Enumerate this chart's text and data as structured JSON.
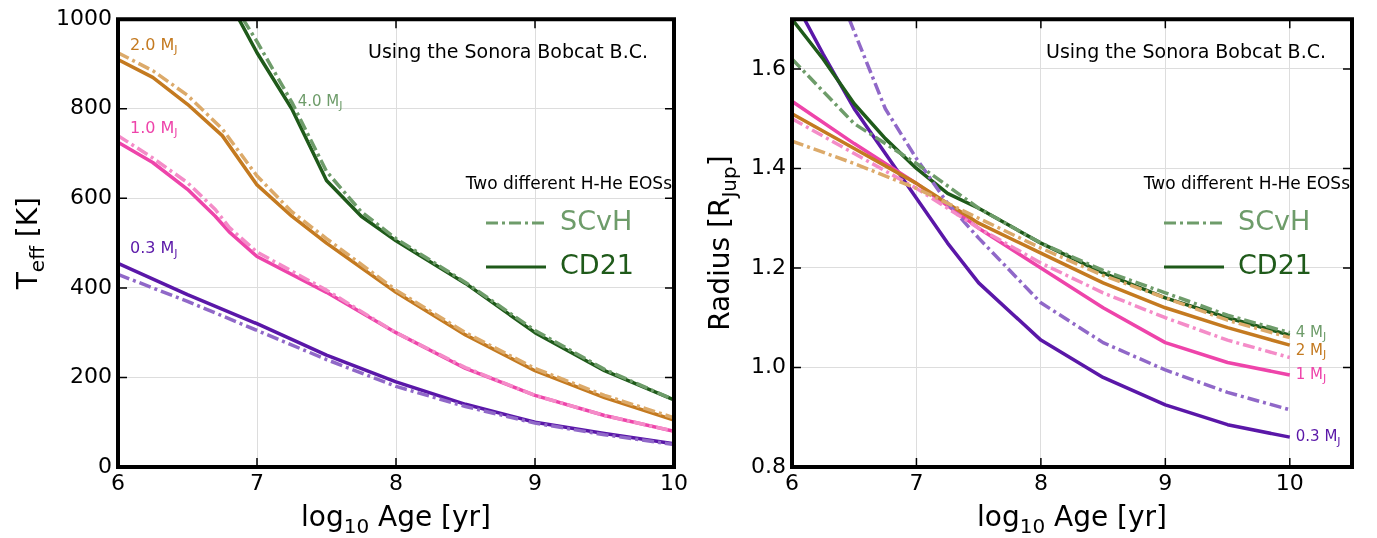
{
  "chart_data": [
    {
      "type": "line",
      "xlabel": "log$_{10}$ Age [yr]",
      "ylabel": "T$_{eff}$ [K]",
      "legend_title": "Two different H-He EOSs",
      "legend": "right",
      "grid": true,
      "xlim": [
        6,
        10
      ],
      "xticks": [
        6,
        7,
        8,
        9,
        10
      ],
      "ylim": [
        0,
        1000
      ],
      "yticks": [
        0,
        200,
        400,
        600,
        800,
        1000
      ],
      "annotations": [
        "Using the Sonora Bobcat B.C.",
        {
          "text": "2.0 M$_{J}$",
          "x": 6,
          "y": 910
        },
        {
          "text": "4.0 M$_{J}$",
          "x": 7.25,
          "y": 815
        },
        {
          "text": "1.0 M$_{J}$",
          "x": 6,
          "y": 725
        },
        {
          "text": "0.3 M$_{J}$",
          "x": 6,
          "y": 455
        }
      ],
      "series": [
        {
          "name": "SCvH",
          "color": "#6e9c6a",
          "line_style": "dashed",
          "x": [
            6.9,
            7,
            7.25,
            7.5,
            7.75,
            8,
            8.5,
            9,
            9.5,
            10
          ],
          "values": [
            1000,
            950,
            815,
            660,
            570,
            510,
            412,
            305,
            218,
            150
          ]
        },
        {
          "color": "#dcaa6a",
          "line_style": "dashed",
          "x": [
            6,
            6.25,
            6.5,
            6.75,
            7,
            7.25,
            7.5,
            8,
            8.5,
            9,
            9.5,
            10
          ],
          "values": [
            925,
            885,
            830,
            755,
            650,
            570,
            510,
            395,
            300,
            220,
            160,
            110
          ]
        },
        {
          "color": "#f48cc8",
          "line_style": "dashed",
          "x": [
            6,
            6.25,
            6.5,
            6.7,
            6.8,
            7,
            7.5,
            8,
            8.5,
            9,
            9.5,
            10
          ],
          "values": [
            740,
            690,
            635,
            575,
            535,
            480,
            395,
            300,
            222,
            160,
            115,
            80
          ]
        },
        {
          "color": "#9068c8",
          "line_style": "dashed",
          "x": [
            6,
            6.5,
            7,
            7.5,
            8,
            8.5,
            9,
            9.5,
            10
          ],
          "values": [
            430,
            370,
            305,
            240,
            180,
            135,
            98,
            72,
            50
          ]
        },
        {
          "name": "CD21",
          "color": "#1f5a1a",
          "line_style": "solid",
          "x": [
            6.87,
            7,
            7.25,
            7.5,
            7.75,
            8,
            8.5,
            9,
            9.5,
            10
          ],
          "values": [
            1000,
            925,
            800,
            640,
            560,
            505,
            410,
            300,
            215,
            150
          ]
        },
        {
          "color": "#c47a20",
          "line_style": "solid",
          "x": [
            6,
            6.25,
            6.5,
            6.75,
            7,
            7.25,
            7.5,
            8,
            8.5,
            9,
            9.5,
            10
          ],
          "values": [
            910,
            870,
            810,
            740,
            630,
            560,
            500,
            390,
            295,
            215,
            155,
            105
          ]
        },
        {
          "color": "#ee44aa",
          "line_style": "solid",
          "x": [
            6,
            6.25,
            6.5,
            6.7,
            6.8,
            7,
            7.5,
            8,
            8.5,
            9,
            9.5,
            10
          ],
          "values": [
            725,
            680,
            620,
            560,
            525,
            470,
            390,
            300,
            220,
            160,
            115,
            80
          ]
        },
        {
          "color": "#5a17a8",
          "line_style": "solid",
          "x": [
            6,
            6.5,
            7,
            7.5,
            8,
            8.5,
            9,
            9.5,
            10
          ],
          "values": [
            455,
            385,
            320,
            250,
            190,
            140,
            100,
            75,
            52
          ]
        }
      ]
    },
    {
      "type": "line",
      "xlabel": "log$_{10}$ Age [yr]",
      "ylabel": "Radius [R$_{Jup}$]",
      "legend_title": "Two different H-He EOSs",
      "legend": "right",
      "grid": true,
      "xlim": [
        6,
        10.5
      ],
      "xticks": [
        6,
        7,
        8,
        9,
        10
      ],
      "ylim": [
        0.8,
        1.7
      ],
      "yticks": [
        0.8,
        {
          "value": 1,
          "label": "1.0"
        },
        1.2,
        1.4,
        1.6
      ],
      "annotations": [
        "Using the Sonora Bobcat B.C.",
        {
          "text": "4 M$_{J}$",
          "x": 10,
          "y": 1.07
        },
        {
          "text": "2 M$_{J}$",
          "x": 10,
          "y": 1.045
        },
        {
          "text": "1 M$_{J}$",
          "x": 10,
          "y": 0.985
        },
        {
          "text": "0.3 M$_{J}$",
          "x": 10,
          "y": 0.86
        }
      ],
      "series": [
        {
          "name": "SCvH",
          "color": "#6e9c6a",
          "line_style": "dashed",
          "x": [
            6,
            6.5,
            7,
            7.5,
            8,
            8.5,
            9,
            9.5,
            10
          ],
          "values": [
            1.62,
            1.49,
            1.41,
            1.32,
            1.25,
            1.195,
            1.15,
            1.105,
            1.07
          ]
        },
        {
          "color": "#dcaa6a",
          "line_style": "dashed",
          "x": [
            6,
            6.5,
            7,
            7.5,
            8,
            8.5,
            9,
            9.5,
            10
          ],
          "values": [
            1.455,
            1.41,
            1.36,
            1.3,
            1.24,
            1.185,
            1.14,
            1.095,
            1.06
          ]
        },
        {
          "color": "#f48cc8",
          "line_style": "dashed",
          "x": [
            6,
            6.5,
            7,
            7.5,
            8,
            8.5,
            9,
            9.5,
            10
          ],
          "values": [
            1.5,
            1.43,
            1.36,
            1.28,
            1.21,
            1.15,
            1.1,
            1.055,
            1.02
          ]
        },
        {
          "color": "#9068c8",
          "line_style": "dashed",
          "x": [
            6.46,
            6.75,
            7,
            7.25,
            7.5,
            8,
            8.5,
            9,
            9.5,
            10
          ],
          "values": [
            1.7,
            1.52,
            1.42,
            1.33,
            1.26,
            1.13,
            1.05,
            0.995,
            0.95,
            0.915
          ]
        },
        {
          "name": "CD21",
          "color": "#1f5a1a",
          "line_style": "solid",
          "x": [
            6,
            6.25,
            6.5,
            6.75,
            7,
            7.25,
            7.5,
            8,
            8.5,
            9,
            9.5,
            10
          ],
          "values": [
            1.7,
            1.62,
            1.53,
            1.46,
            1.4,
            1.35,
            1.32,
            1.25,
            1.19,
            1.14,
            1.1,
            1.065
          ]
        },
        {
          "color": "#c47a20",
          "line_style": "solid",
          "x": [
            6,
            6.5,
            7,
            7.5,
            8,
            8.5,
            9,
            9.5,
            10
          ],
          "values": [
            1.51,
            1.44,
            1.37,
            1.29,
            1.23,
            1.17,
            1.12,
            1.08,
            1.045
          ]
        },
        {
          "color": "#ee44aa",
          "line_style": "solid",
          "x": [
            6,
            6.5,
            7,
            7.5,
            8,
            8.5,
            9,
            9.5,
            10
          ],
          "values": [
            1.535,
            1.45,
            1.37,
            1.28,
            1.2,
            1.12,
            1.05,
            1.01,
            0.985
          ]
        },
        {
          "color": "#5a17a8",
          "line_style": "solid",
          "x": [
            6.1,
            6.25,
            6.5,
            6.75,
            7,
            7.25,
            7.5,
            8,
            8.5,
            9,
            9.5,
            10
          ],
          "values": [
            1.7,
            1.63,
            1.52,
            1.43,
            1.34,
            1.25,
            1.17,
            1.055,
            0.98,
            0.925,
            0.885,
            0.86
          ]
        }
      ]
    }
  ]
}
